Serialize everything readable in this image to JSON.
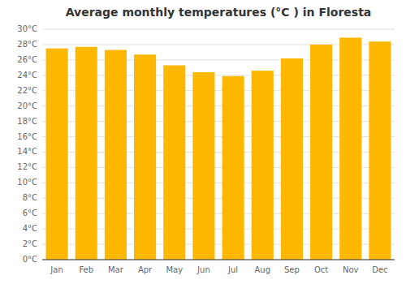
{
  "chart_data": {
    "type": "bar",
    "title": "Average monthly temperatures (°C ) in Floresta",
    "categories": [
      "Jan",
      "Feb",
      "Mar",
      "Apr",
      "May",
      "Jun",
      "Jul",
      "Aug",
      "Sep",
      "Oct",
      "Nov",
      "Dec"
    ],
    "values": [
      27.5,
      27.7,
      27.3,
      26.7,
      25.3,
      24.4,
      23.9,
      24.6,
      26.2,
      28.0,
      28.9,
      28.4
    ],
    "color": "#FFB800",
    "ylim": [
      0,
      30
    ],
    "yticks": [
      {
        "value": 0,
        "label": "0°C"
      },
      {
        "value": 2,
        "label": "2°C"
      },
      {
        "value": 4,
        "label": "4°C"
      },
      {
        "value": 6,
        "label": "6°C"
      },
      {
        "value": 8,
        "label": "8°C"
      },
      {
        "value": 10,
        "label": "10°C"
      },
      {
        "value": 12,
        "label": "12°C"
      },
      {
        "value": 14,
        "label": "14°C"
      },
      {
        "value": 16,
        "label": "16°C"
      },
      {
        "value": 18,
        "label": "18°C"
      },
      {
        "value": 20,
        "label": "20°C"
      },
      {
        "value": 22,
        "label": "22°C"
      },
      {
        "value": 24,
        "label": "24°C"
      },
      {
        "value": 26,
        "label": "26°C"
      },
      {
        "value": 28,
        "label": "28°C"
      },
      {
        "value": 30,
        "label": "30°C"
      }
    ],
    "grid": true
  }
}
